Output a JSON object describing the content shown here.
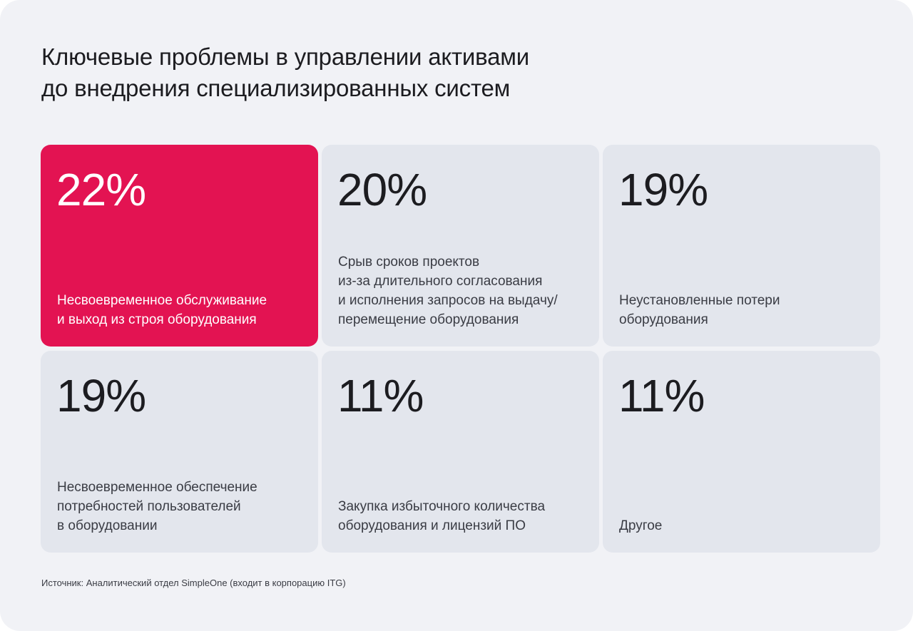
{
  "title": {
    "line1": "Ключевые проблемы в управлении активами",
    "line2": "до внедрения специализированных систем"
  },
  "source": "Источник: Аналитический отдел SimpleOne (входит в корпорацию ITG)",
  "colors": {
    "background": "#f1f2f6",
    "tile": "#e3e6ed",
    "highlight": "#e31352",
    "text": "#1c1c20"
  },
  "chart_data": {
    "type": "table",
    "title": "Ключевые проблемы в управлении активами до внедрения специализированных систем",
    "unit": "%",
    "highlighted_index": 0,
    "items": [
      {
        "value": "22%",
        "percent": 22,
        "label_lines": [
          "Несвоевременное обслуживание",
          "и выход из строя оборудования"
        ]
      },
      {
        "value": "20%",
        "percent": 20,
        "label_lines": [
          "Срыв сроков проектов",
          "из-за длительного согласования",
          "и исполнения запросов на выдачу/",
          "перемещение оборудования"
        ]
      },
      {
        "value": "19%",
        "percent": 19,
        "label_lines": [
          "Неустановленные потери",
          "оборудования"
        ]
      },
      {
        "value": "19%",
        "percent": 19,
        "label_lines": [
          "Несвоевременное обеспечение",
          "потребностей пользователей",
          "в оборудовании"
        ]
      },
      {
        "value": "11%",
        "percent": 11,
        "label_lines": [
          "Закупка избыточного количества",
          "оборудования и лицензий ПО"
        ]
      },
      {
        "value": "11%",
        "percent": 11,
        "label_lines": [
          "Другое"
        ]
      }
    ]
  }
}
